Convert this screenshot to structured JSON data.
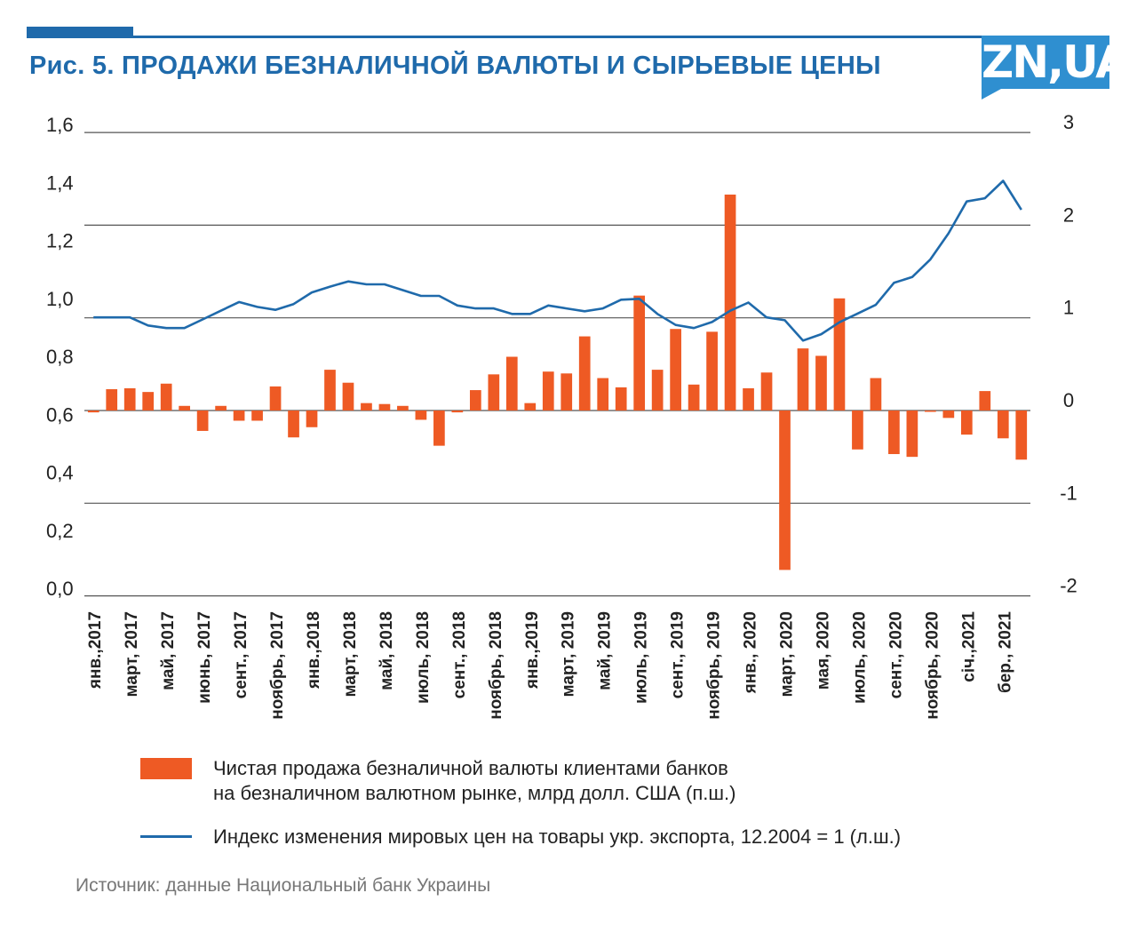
{
  "title": "Рис. 5. ПРОДАЖИ БЕЗНАЛИЧНОЙ ВАЛЮТЫ И СЫРЬЕВЫЕ ЦЕНЫ",
  "logo_text": "ZN,UA",
  "source": "Источник: данные Национальный банк Украины",
  "legend": {
    "bars_line1": "Чистая продажа безналичной валюты клиентами банков",
    "bars_line2": "на безналичном валютном рынке, млрд долл. США (п.ш.)",
    "line": "Индекс изменения мировых цен на товары укр. экспорта, 12.2004 = 1 (л.ш.)"
  },
  "colors": {
    "bars": "#ee5a24",
    "line": "#1f6aab",
    "title": "#1f6aab",
    "grid": "#555555"
  },
  "chart_data": {
    "type": "bar+line",
    "left_axis": {
      "ticks": [
        "0,0",
        "0,2",
        "0,4",
        "0,6",
        "0,8",
        "1,0",
        "1,2",
        "1,4",
        "1,6"
      ],
      "ylim": [
        0,
        1.6
      ]
    },
    "right_axis": {
      "ticks": [
        "-2",
        "-1",
        "0",
        "1",
        "2",
        "3"
      ],
      "ylim": [
        -2,
        3
      ]
    },
    "x_tick_labels": [
      "янв.,2017",
      "март, 2017",
      "май, 2017",
      "июнь, 2017",
      "сент., 2017",
      "ноябрь, 2017",
      "янв.,2018",
      "март, 2018",
      "май, 2018",
      "июль, 2018",
      "сент., 2018",
      "ноябрь, 2018",
      "янв.,2019",
      "март, 2019",
      "май, 2019",
      "июль, 2019",
      "сент., 2019",
      "ноябрь, 2019",
      "янв., 2020",
      "март, 2020",
      "мая, 2020",
      "июль, 2020",
      "сент., 2020",
      "ноябрь, 2020",
      "січ.,2021",
      "бер., 2021"
    ],
    "series": [
      {
        "kind": "bar",
        "axis": "right",
        "values": [
          -0.02,
          0.23,
          0.24,
          0.2,
          0.29,
          0.05,
          -0.22,
          0.05,
          -0.11,
          -0.11,
          0.26,
          -0.29,
          -0.18,
          0.44,
          0.3,
          0.08,
          0.07,
          0.05,
          -0.1,
          -0.38,
          -0.02,
          0.22,
          0.39,
          0.58,
          0.08,
          0.42,
          0.4,
          0.8,
          0.35,
          0.25,
          1.24,
          0.44,
          0.88,
          0.28,
          0.85,
          2.33,
          0.24,
          0.41,
          -1.72,
          0.67,
          0.59,
          1.21,
          -0.42,
          0.35,
          -0.47,
          -0.5,
          -0.01,
          -0.08,
          -0.26,
          0.21,
          -0.3,
          -0.53
        ]
      },
      {
        "kind": "line",
        "axis": "left",
        "values": [
          0.965,
          0.965,
          0.965,
          0.937,
          0.928,
          0.928,
          0.958,
          0.988,
          1.018,
          1.001,
          0.991,
          1.011,
          1.051,
          1.071,
          1.089,
          1.079,
          1.079,
          1.059,
          1.039,
          1.039,
          1.006,
          0.996,
          0.996,
          0.977,
          0.977,
          1.006,
          0.996,
          0.986,
          0.996,
          1.026,
          1.029,
          0.977,
          0.939,
          0.928,
          0.949,
          0.988,
          1.016,
          0.965,
          0.955,
          0.885,
          0.907,
          0.948,
          0.978,
          1.008,
          1.084,
          1.104,
          1.165,
          1.255,
          1.365,
          1.376,
          1.436,
          1.336
        ]
      }
    ]
  }
}
